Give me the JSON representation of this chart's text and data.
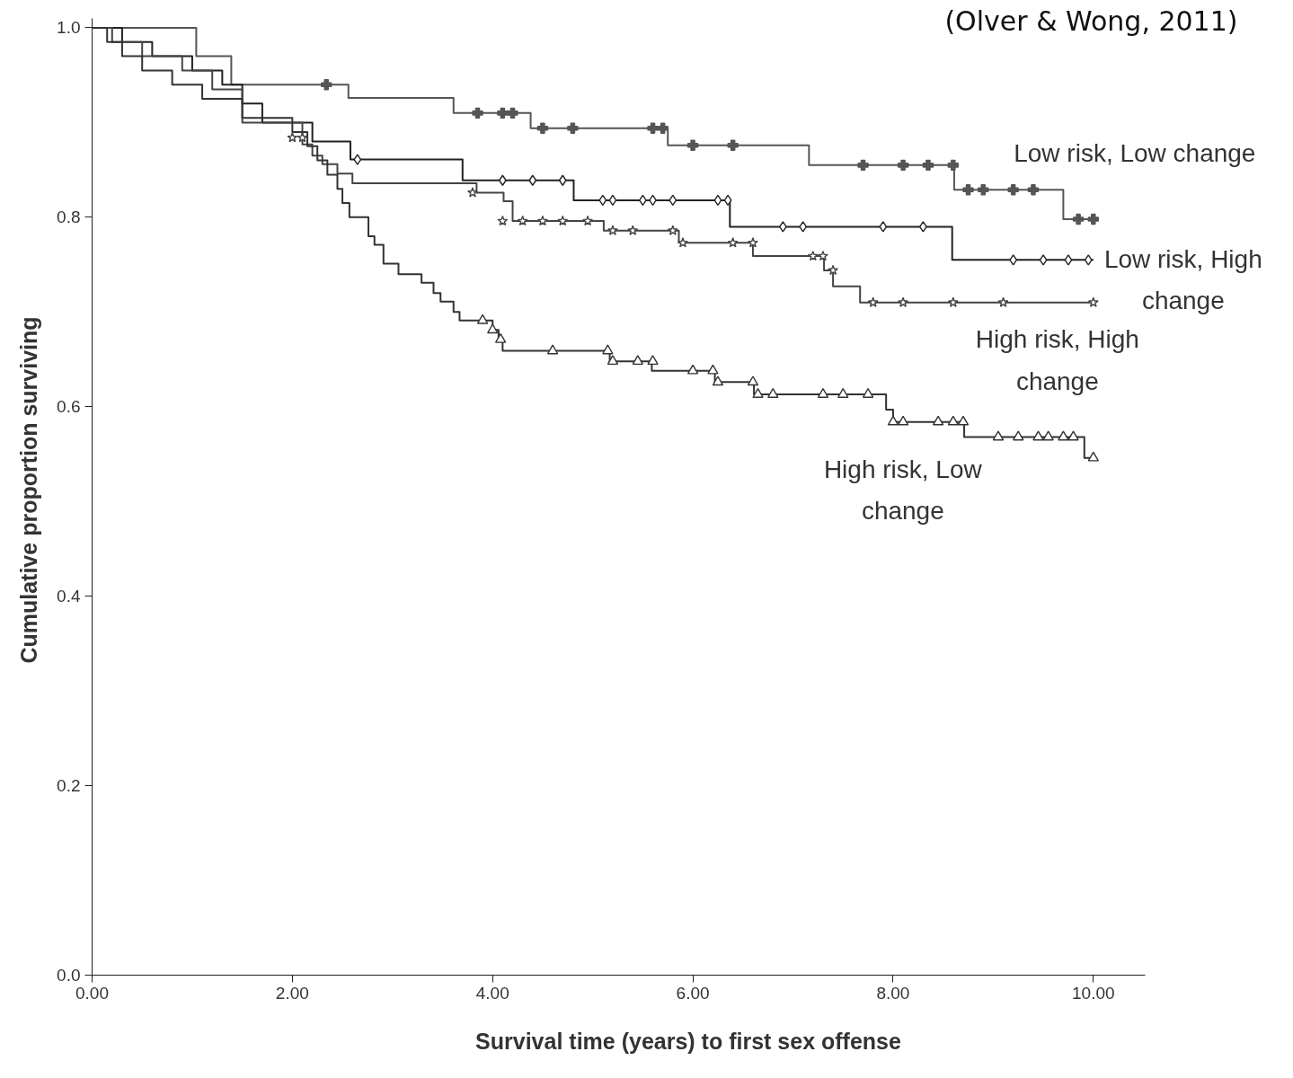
{
  "chart_data": {
    "type": "step",
    "xlabel": "Survival time (years) to first sex offense",
    "ylabel": "Cumulative proportion surviving",
    "annotations": [
      "(Olver & Wong, 2011)"
    ],
    "xlim": [
      0,
      10.52
    ],
    "ylim": [
      0,
      1.01
    ],
    "xticks": [
      {
        "value": 0,
        "label": "0.00"
      },
      {
        "value": 2,
        "label": "2.00"
      },
      {
        "value": 4,
        "label": "4.00"
      },
      {
        "value": 6,
        "label": "6.00"
      },
      {
        "value": 8,
        "label": "8.00"
      },
      {
        "value": 10,
        "label": "10.00"
      }
    ],
    "yticks": [
      {
        "value": 0,
        "label": "0.0"
      },
      {
        "value": 0.2,
        "label": "0.2"
      },
      {
        "value": 0.4,
        "label": "0.4"
      },
      {
        "value": 0.6,
        "label": "0.6"
      },
      {
        "value": 0.8,
        "label": "0.8"
      },
      {
        "value": 1.0,
        "label": "1.0"
      }
    ],
    "grid": false,
    "series": [
      {
        "name": "Low risk, Low change",
        "color": "#555555",
        "x": [
          0,
          1.04,
          1.39,
          2.56,
          3.61,
          4.38,
          5.75,
          7.16,
          8.61,
          9.7,
          10.0
        ],
        "values": [
          1.0,
          0.97,
          0.94,
          0.926,
          0.91,
          0.894,
          0.876,
          0.855,
          0.829,
          0.798,
          0.798
        ]
      },
      {
        "name": "Low risk, High change",
        "color": "#222222",
        "x": [
          0,
          0.3,
          0.6,
          1.0,
          1.3,
          1.5,
          1.7,
          2.2,
          2.58,
          3.7,
          4.81,
          6.37,
          8.59,
          10.0
        ],
        "values": [
          1.0,
          0.985,
          0.97,
          0.955,
          0.94,
          0.92,
          0.9,
          0.88,
          0.861,
          0.839,
          0.818,
          0.79,
          0.755,
          0.755
        ]
      },
      {
        "name": "High risk, High change",
        "color": "#444444",
        "x": [
          0,
          0.2,
          0.5,
          0.9,
          1.2,
          1.5,
          2.1,
          2.2,
          2.3,
          2.45,
          2.6,
          3.84,
          4.11,
          4.2,
          5.11,
          5.86,
          6.6,
          7.31,
          7.4,
          7.67,
          10.0
        ],
        "values": [
          1.0,
          0.985,
          0.97,
          0.955,
          0.935,
          0.9,
          0.877,
          0.865,
          0.856,
          0.846,
          0.836,
          0.826,
          0.817,
          0.796,
          0.786,
          0.773,
          0.759,
          0.744,
          0.727,
          0.71,
          0.71
        ]
      },
      {
        "name": "High risk, Low change",
        "color": "#333333",
        "x": [
          0,
          0.15,
          0.3,
          0.5,
          0.8,
          1.1,
          1.5,
          2.0,
          2.15,
          2.25,
          2.35,
          2.45,
          2.5,
          2.57,
          2.76,
          2.82,
          2.91,
          3.06,
          3.29,
          3.41,
          3.48,
          3.61,
          3.67,
          4.0,
          4.06,
          4.1,
          5.17,
          5.59,
          6.22,
          6.61,
          7.93,
          8.0,
          8.71,
          9.91,
          10.0
        ],
        "values": [
          1.0,
          0.985,
          0.97,
          0.955,
          0.94,
          0.925,
          0.905,
          0.89,
          0.875,
          0.86,
          0.845,
          0.83,
          0.815,
          0.8,
          0.78,
          0.771,
          0.751,
          0.74,
          0.731,
          0.72,
          0.711,
          0.7,
          0.691,
          0.681,
          0.671,
          0.659,
          0.648,
          0.638,
          0.626,
          0.613,
          0.597,
          0.584,
          0.568,
          0.546,
          0.546
        ]
      },
      {
        "type": "scatter",
        "marker": "cross",
        "color": "#555555",
        "x": [
          2.34,
          3.85,
          4.1,
          4.2,
          4.5,
          4.8,
          5.6,
          5.7,
          6.0,
          6.4,
          7.7,
          8.1,
          8.35,
          8.6,
          8.75,
          8.9,
          9.2,
          9.4,
          9.85,
          10.0
        ],
        "values": [
          0.94,
          0.91,
          0.91,
          0.91,
          0.894,
          0.894,
          0.894,
          0.894,
          0.876,
          0.876,
          0.855,
          0.855,
          0.855,
          0.855,
          0.829,
          0.829,
          0.829,
          0.829,
          0.798,
          0.798
        ]
      },
      {
        "type": "scatter",
        "marker": "diamond",
        "color": "#222222",
        "x": [
          2.65,
          4.1,
          4.4,
          4.7,
          5.1,
          5.2,
          5.5,
          5.6,
          5.8,
          6.25,
          6.35,
          6.9,
          7.1,
          7.9,
          8.3,
          9.2,
          9.5,
          9.75,
          9.95
        ],
        "values": [
          0.861,
          0.839,
          0.839,
          0.839,
          0.818,
          0.818,
          0.818,
          0.818,
          0.818,
          0.818,
          0.818,
          0.79,
          0.79,
          0.79,
          0.79,
          0.755,
          0.755,
          0.755,
          0.755
        ]
      },
      {
        "type": "scatter",
        "marker": "star",
        "color": "#444444",
        "x": [
          2.0,
          2.1,
          3.8,
          4.1,
          4.3,
          4.5,
          4.7,
          4.95,
          5.2,
          5.4,
          5.8,
          5.9,
          6.4,
          6.6,
          7.2,
          7.3,
          7.4,
          7.8,
          8.1,
          8.6,
          9.1,
          10.0
        ],
        "values": [
          0.884,
          0.884,
          0.826,
          0.796,
          0.796,
          0.796,
          0.796,
          0.796,
          0.786,
          0.786,
          0.786,
          0.773,
          0.773,
          0.773,
          0.759,
          0.759,
          0.744,
          0.71,
          0.71,
          0.71,
          0.71,
          0.71
        ]
      },
      {
        "type": "scatter",
        "marker": "triangle",
        "color": "#333333",
        "x": [
          3.9,
          4.0,
          4.08,
          4.6,
          5.15,
          5.2,
          5.45,
          5.6,
          6.0,
          6.2,
          6.25,
          6.6,
          6.65,
          6.8,
          7.3,
          7.5,
          7.75,
          8.0,
          8.1,
          8.45,
          8.6,
          8.7,
          9.05,
          9.25,
          9.45,
          9.55,
          9.7,
          9.8,
          10.0
        ],
        "values": [
          0.691,
          0.681,
          0.671,
          0.659,
          0.659,
          0.648,
          0.648,
          0.648,
          0.638,
          0.638,
          0.626,
          0.626,
          0.613,
          0.613,
          0.613,
          0.613,
          0.613,
          0.584,
          0.584,
          0.584,
          0.584,
          0.584,
          0.568,
          0.568,
          0.568,
          0.568,
          0.568,
          0.568,
          0.546
        ]
      }
    ]
  }
}
